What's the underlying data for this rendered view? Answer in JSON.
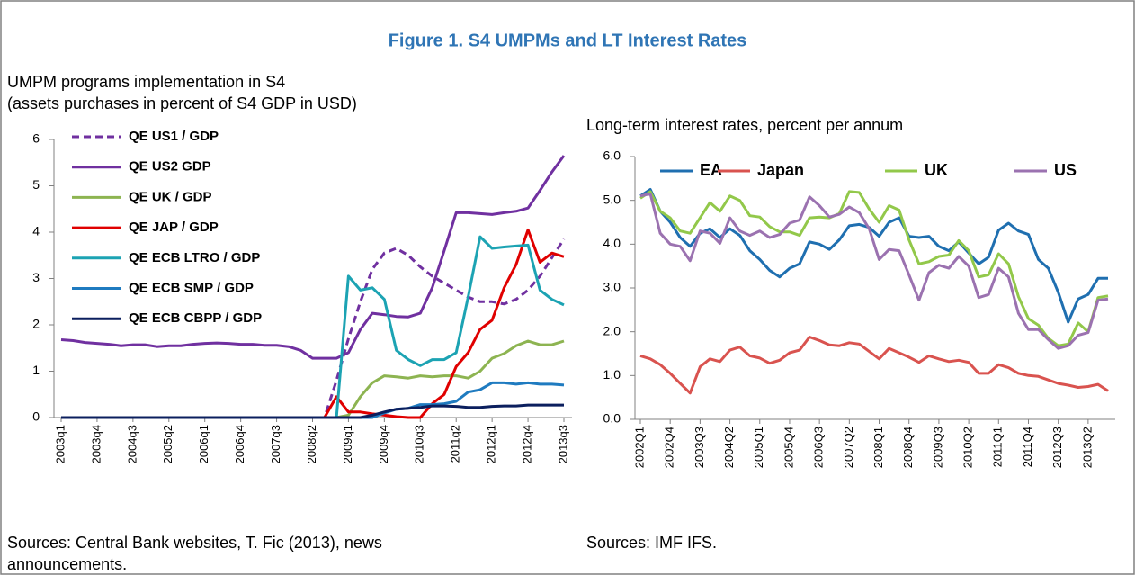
{
  "figure_title": "Figure 1. S4 UMPMs and LT Interest Rates",
  "chart_data": [
    {
      "type": "line",
      "subtitle": [
        "UMPM programs implementation in S4",
        "(assets purchases in percent of S4 GDP in USD)"
      ],
      "source": [
        "Sources: Central Bank websites, T. Fic (2013), news",
        "announcements."
      ],
      "legend": "upper left",
      "categories": [
        "2003q1",
        null,
        null,
        "2003q4",
        null,
        null,
        "2004q3",
        null,
        null,
        "2005q2",
        null,
        null,
        "2006q1",
        null,
        null,
        "2006q4",
        null,
        null,
        "2007q3",
        null,
        null,
        "2008q2",
        null,
        null,
        "2009q1",
        null,
        null,
        "2009q4",
        null,
        null,
        "2010q3",
        null,
        null,
        "2011q2",
        null,
        null,
        "2012q1",
        null,
        null,
        "2012q4",
        null,
        null,
        "2013q3"
      ],
      "ylim": [
        0,
        6
      ],
      "yticks": [
        0,
        1,
        2,
        3,
        4,
        5,
        6
      ],
      "series": [
        {
          "name": "QE US1 / GDP",
          "color": "#7030a0",
          "dashed": true,
          "values": [
            0,
            0,
            0,
            0,
            0,
            0,
            0,
            0,
            0,
            0,
            0,
            0,
            0,
            0,
            0,
            0,
            0,
            0,
            0,
            0,
            0,
            0,
            0,
            0.8,
            1.7,
            2.5,
            3.2,
            3.55,
            3.65,
            3.5,
            3.25,
            3.05,
            2.9,
            2.75,
            2.6,
            2.5,
            2.5,
            2.45,
            2.55,
            2.75,
            3.05,
            3.45,
            3.85
          ]
        },
        {
          "name": "QE US2 GDP",
          "color": "#7030a0",
          "values": [
            1.68,
            1.66,
            1.62,
            1.6,
            1.58,
            1.55,
            1.57,
            1.57,
            1.53,
            1.55,
            1.55,
            1.58,
            1.6,
            1.61,
            1.6,
            1.58,
            1.58,
            1.56,
            1.56,
            1.53,
            1.45,
            1.28,
            1.28,
            1.28,
            1.4,
            1.9,
            2.25,
            2.22,
            2.18,
            2.17,
            2.25,
            2.8,
            3.6,
            4.42,
            4.42,
            4.4,
            4.38,
            4.42,
            4.45,
            4.52,
            4.9,
            5.3,
            5.65
          ]
        },
        {
          "name": "QE UK / GDP",
          "color": "#8db451",
          "values": [
            0,
            0,
            0,
            0,
            0,
            0,
            0,
            0,
            0,
            0,
            0,
            0,
            0,
            0,
            0,
            0,
            0,
            0,
            0,
            0,
            0,
            0,
            0,
            0,
            0.05,
            0.45,
            0.75,
            0.9,
            0.88,
            0.85,
            0.9,
            0.88,
            0.9,
            0.9,
            0.85,
            1.0,
            1.28,
            1.38,
            1.55,
            1.65,
            1.57,
            1.57,
            1.65
          ]
        },
        {
          "name": "QE JAP / GDP",
          "color": "#e00000",
          "values": [
            0,
            0,
            0,
            0,
            0,
            0,
            0,
            0,
            0,
            0,
            0,
            0,
            0,
            0,
            0,
            0,
            0,
            0,
            0,
            0,
            0,
            0,
            0,
            0.45,
            0.12,
            0.12,
            0.08,
            0.05,
            0.02,
            0,
            0,
            0.3,
            0.5,
            1.1,
            1.4,
            1.9,
            2.1,
            2.8,
            3.3,
            4.05,
            3.35,
            3.55,
            3.47
          ]
        },
        {
          "name": "QE ECB LTRO / GDP",
          "color": "#1ca3b3",
          "values": [
            0,
            0,
            0,
            0,
            0,
            0,
            0,
            0,
            0,
            0,
            0,
            0,
            0,
            0,
            0,
            0,
            0,
            0,
            0,
            0,
            0,
            0,
            0,
            0,
            3.05,
            2.75,
            2.8,
            2.55,
            1.45,
            1.25,
            1.12,
            1.25,
            1.25,
            1.4,
            2.6,
            3.9,
            3.65,
            3.68,
            3.7,
            3.72,
            2.75,
            2.55,
            2.43
          ]
        },
        {
          "name": "QE ECB SMP / GDP",
          "color": "#1f7bc0",
          "values": [
            0,
            0,
            0,
            0,
            0,
            0,
            0,
            0,
            0,
            0,
            0,
            0,
            0,
            0,
            0,
            0,
            0,
            0,
            0,
            0,
            0,
            0,
            0,
            0,
            0,
            0,
            0,
            0.1,
            0.18,
            0.2,
            0.28,
            0.28,
            0.3,
            0.35,
            0.55,
            0.6,
            0.75,
            0.75,
            0.72,
            0.75,
            0.72,
            0.72,
            0.7
          ]
        },
        {
          "name": "QE ECB CBPP / GDP",
          "color": "#0b1f5e",
          "values": [
            0,
            0,
            0,
            0,
            0,
            0,
            0,
            0,
            0,
            0,
            0,
            0,
            0,
            0,
            0,
            0,
            0,
            0,
            0,
            0,
            0,
            0,
            0,
            0,
            0,
            0,
            0.05,
            0.12,
            0.18,
            0.2,
            0.22,
            0.25,
            0.25,
            0.24,
            0.22,
            0.22,
            0.24,
            0.25,
            0.25,
            0.27,
            0.27,
            0.27,
            0.27
          ]
        }
      ]
    },
    {
      "type": "line",
      "subtitle": [
        "Long-term interest rates, percent per annum"
      ],
      "source": [
        "Sources: IMF IFS."
      ],
      "legend": "top",
      "categories": [
        "2002Q1",
        null,
        null,
        "2002Q4",
        null,
        null,
        "2003Q3",
        null,
        null,
        "2004Q2",
        null,
        null,
        "2005Q1",
        null,
        null,
        "2005Q4",
        null,
        null,
        "2006Q3",
        null,
        null,
        "2007Q2",
        null,
        null,
        "2008Q1",
        null,
        null,
        "2008Q4",
        null,
        null,
        "2009Q3",
        null,
        null,
        "2010Q2",
        null,
        null,
        "2011Q1",
        null,
        null,
        "2011Q4",
        null,
        null,
        "2012Q3",
        null,
        null,
        "2013Q2",
        null,
        null
      ],
      "ylim": [
        0,
        6
      ],
      "yticks": [
        {
          "value": 0,
          "label": "0.0"
        },
        {
          "value": 1,
          "label": "1.0"
        },
        {
          "value": 2,
          "label": "2.0"
        },
        {
          "value": 3,
          "label": "3.0"
        },
        {
          "value": 4,
          "label": "4.0"
        },
        {
          "value": 5,
          "label": "5.0"
        },
        {
          "value": 6,
          "label": "6.0"
        }
      ],
      "series": [
        {
          "name": "EA",
          "color": "#1f6fb0",
          "values": [
            5.1,
            5.25,
            4.75,
            4.5,
            4.15,
            3.95,
            4.25,
            4.35,
            4.15,
            4.35,
            4.2,
            3.85,
            3.65,
            3.4,
            3.25,
            3.45,
            3.55,
            4.05,
            4.0,
            3.88,
            4.1,
            4.42,
            4.45,
            4.38,
            4.18,
            4.5,
            4.6,
            4.18,
            4.15,
            4.18,
            3.95,
            3.85,
            4.05,
            3.8,
            3.55,
            3.7,
            4.32,
            4.48,
            4.3,
            4.22,
            3.65,
            3.45,
            2.9,
            2.22,
            2.75,
            2.85,
            3.22,
            3.22
          ]
        },
        {
          "name": "Japan",
          "color": "#d9534f",
          "values": [
            1.45,
            1.38,
            1.25,
            1.05,
            0.82,
            0.6,
            1.2,
            1.38,
            1.32,
            1.58,
            1.65,
            1.45,
            1.4,
            1.28,
            1.35,
            1.52,
            1.58,
            1.88,
            1.8,
            1.7,
            1.68,
            1.75,
            1.72,
            1.55,
            1.38,
            1.62,
            1.52,
            1.42,
            1.3,
            1.45,
            1.38,
            1.32,
            1.35,
            1.3,
            1.05,
            1.05,
            1.25,
            1.18,
            1.05,
            1.0,
            0.98,
            0.9,
            0.82,
            0.78,
            0.73,
            0.75,
            0.8,
            0.65
          ]
        },
        {
          "name": "UK",
          "color": "#92c84a",
          "values": [
            5.05,
            5.2,
            4.75,
            4.6,
            4.3,
            4.25,
            4.6,
            4.95,
            4.75,
            5.1,
            5.0,
            4.65,
            4.62,
            4.4,
            4.28,
            4.28,
            4.2,
            4.6,
            4.62,
            4.6,
            4.7,
            5.2,
            5.18,
            4.8,
            4.5,
            4.88,
            4.78,
            4.1,
            3.55,
            3.6,
            3.72,
            3.75,
            4.08,
            3.85,
            3.25,
            3.3,
            3.78,
            3.55,
            2.8,
            2.3,
            2.15,
            1.85,
            1.68,
            1.72,
            2.2,
            2.0,
            2.78,
            2.82
          ]
        },
        {
          "name": "US",
          "color": "#9b72b0",
          "values": [
            5.1,
            5.15,
            4.25,
            4.0,
            3.95,
            3.62,
            4.3,
            4.25,
            4.02,
            4.6,
            4.3,
            4.2,
            4.3,
            4.15,
            4.22,
            4.48,
            4.55,
            5.08,
            4.88,
            4.62,
            4.68,
            4.85,
            4.72,
            4.35,
            3.65,
            3.88,
            3.85,
            3.3,
            2.72,
            3.35,
            3.52,
            3.45,
            3.72,
            3.5,
            2.78,
            2.85,
            3.45,
            3.25,
            2.42,
            2.05,
            2.05,
            1.82,
            1.62,
            1.68,
            1.92,
            1.98,
            2.72,
            2.75
          ]
        }
      ]
    }
  ]
}
